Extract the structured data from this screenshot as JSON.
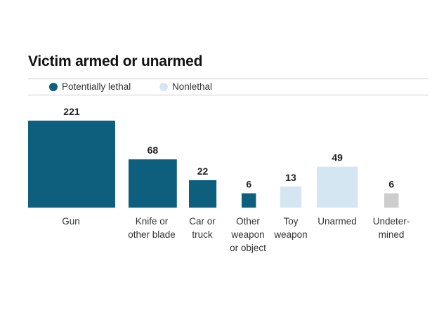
{
  "chart_data": {
    "type": "bar",
    "encoding": "square-area",
    "title": "Victim armed or unarmed",
    "legend": [
      {
        "label": "Potentially lethal",
        "color": "#0e5e7e"
      },
      {
        "label": "Nonlethal",
        "color": "#d3e6f1"
      }
    ],
    "legend_position": "top",
    "categories": [
      {
        "lines": [
          "Gun"
        ],
        "value": 221,
        "group": "Potentially lethal",
        "color": "#0e5e7e"
      },
      {
        "lines": [
          "Knife or",
          "other blade"
        ],
        "value": 68,
        "group": "Potentially lethal",
        "color": "#0e5e7e"
      },
      {
        "lines": [
          "Car or",
          "truck"
        ],
        "value": 22,
        "group": "Potentially lethal",
        "color": "#0e5e7e"
      },
      {
        "lines": [
          "Other",
          "weapon",
          "or object"
        ],
        "value": 6,
        "group": "Potentially lethal",
        "color": "#0e5e7e"
      },
      {
        "lines": [
          "Toy",
          "weapon"
        ],
        "value": 13,
        "group": "Nonlethal",
        "color": "#d3e6f1"
      },
      {
        "lines": [
          "Unarmed"
        ],
        "value": 49,
        "group": "Nonlethal",
        "color": "#d3e6f1"
      },
      {
        "lines": [
          "Undeter-",
          "mined"
        ],
        "value": 6,
        "group": "Undetermined",
        "color": "#cdcdcd"
      }
    ]
  }
}
